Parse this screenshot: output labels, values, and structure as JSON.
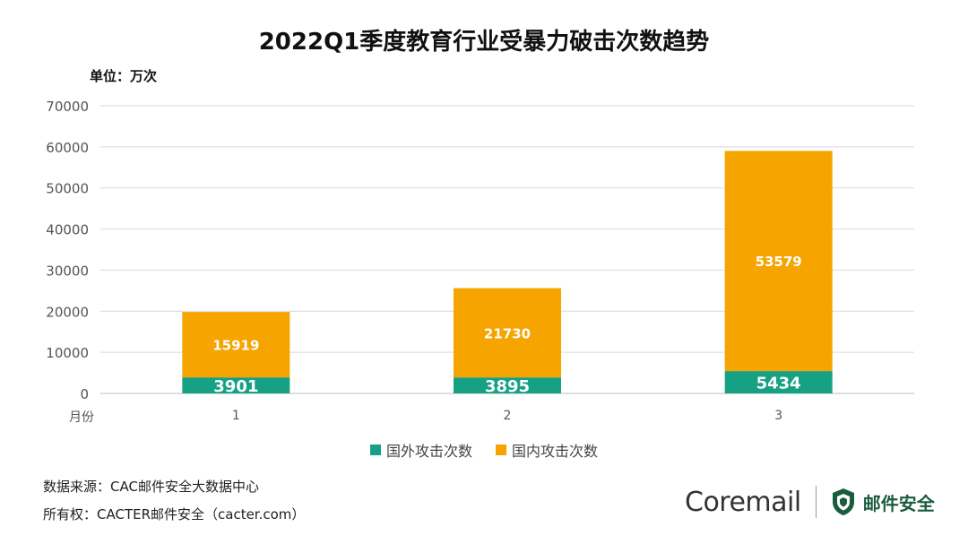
{
  "unit": "单位：万次",
  "colors": {
    "series1": "#17A184",
    "series2": "#F5A400",
    "grid": "#d9d9d9"
  },
  "chart_data": {
    "type": "bar",
    "stacked": true,
    "title": "2022Q1季度教育行业受暴力破击次数趋势",
    "xlabel": "月份",
    "ylabel": "",
    "categories": [
      "1",
      "2",
      "3"
    ],
    "series": [
      {
        "name": "国外攻击次数",
        "values": [
          3901,
          3895,
          5434
        ]
      },
      {
        "name": "国内攻击次数",
        "values": [
          15919,
          21730,
          53579
        ]
      }
    ],
    "ylim": [
      0,
      70000
    ],
    "yticks": [
      "0",
      "10000",
      "20000",
      "30000",
      "40000",
      "50000",
      "60000",
      "70000"
    ],
    "grid": true,
    "legend": "bottom"
  },
  "footer": {
    "source": "数据来源：CAC邮件安全大数据中心",
    "copyright": "所有权：CACTER邮件安全（cacter.com）"
  },
  "brand": {
    "logo_text": "Coremail",
    "logo_cn": "邮件安全",
    "icon": "shield-icon"
  }
}
